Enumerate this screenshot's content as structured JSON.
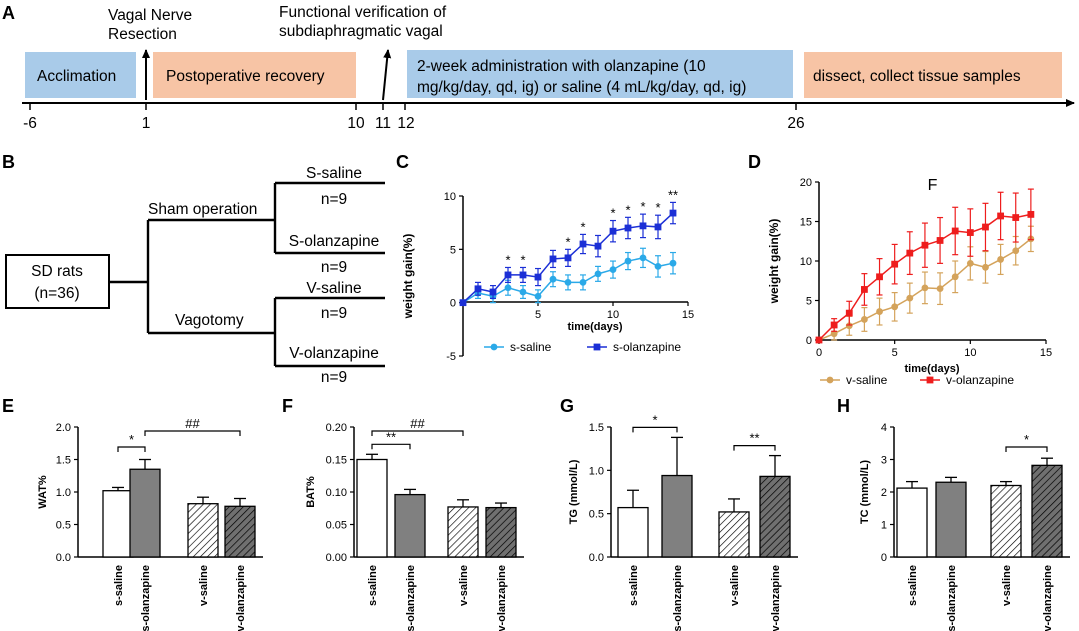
{
  "panel_letters": [
    "A",
    "B",
    "C",
    "D",
    "E",
    "F",
    "G",
    "H"
  ],
  "timeline": {
    "ticks": [
      "-6",
      "1",
      "10",
      "11",
      "12",
      "26"
    ],
    "events": {
      "vagal_resection": [
        "Vagal Nerve",
        "Resection"
      ],
      "functional_verification": [
        "Functional verification of",
        "subdiaphragmatic vagal"
      ]
    },
    "phases": {
      "acclimation": "Acclimation",
      "recovery": "Postoperative recovery",
      "administration": [
        "2-week administration with olanzapine (10",
        "mg/kg/day, qd, ig) or saline (4 mL/kg/day, qd, ig)"
      ],
      "dissect": "dissect, collect tissue samples"
    },
    "colors": {
      "blue_phase": "#a9cbe9",
      "orange_phase": "#f7c4a5"
    }
  },
  "design_tree": {
    "root": [
      "SD rats",
      "(n=36)"
    ],
    "sham": "Sham operation",
    "vagotomy": "Vagotomy",
    "groups": [
      {
        "name": "S-saline",
        "n": "n=9"
      },
      {
        "name": "S-olanzapine",
        "n": "n=9"
      },
      {
        "name": "V-saline",
        "n": "n=9"
      },
      {
        "name": "V-olanzapine",
        "n": "n=9"
      }
    ]
  },
  "chart_data": [
    {
      "id": "C",
      "type": "line",
      "title": "",
      "xlabel": "time(days)",
      "ylabel": "weight gain(%)",
      "xlim": [
        0,
        15
      ],
      "ylim": [
        -5,
        10
      ],
      "xticks": [
        5,
        10,
        15
      ],
      "yticks": [
        -5,
        0,
        5,
        10
      ],
      "x": [
        0,
        1,
        2,
        3,
        4,
        5,
        6,
        7,
        8,
        9,
        10,
        11,
        12,
        13,
        14
      ],
      "series": [
        {
          "name": "s-saline",
          "color": "#2aa9e8",
          "marker": "circle",
          "values": [
            0,
            0.9,
            0.6,
            1.4,
            1.0,
            0.6,
            2.2,
            1.9,
            1.9,
            2.7,
            3.1,
            3.9,
            4.2,
            3.4,
            3.7
          ],
          "errors": [
            0,
            0.5,
            0.6,
            0.7,
            0.6,
            0.6,
            0.7,
            0.7,
            0.7,
            0.7,
            0.8,
            0.8,
            0.9,
            1.0,
            1.0
          ]
        },
        {
          "name": "s-olanzapine",
          "color": "#1b2fd6",
          "marker": "square",
          "values": [
            0,
            1.3,
            1.0,
            2.6,
            2.6,
            2.4,
            4.1,
            4.2,
            5.5,
            5.3,
            6.7,
            7.0,
            7.2,
            7.1,
            8.4
          ],
          "errors": [
            0,
            0.6,
            0.6,
            0.7,
            0.7,
            0.8,
            0.8,
            0.8,
            0.9,
            1.0,
            1.0,
            1.0,
            1.1,
            1.1,
            1.0
          ]
        }
      ],
      "significance": [
        {
          "x": 3,
          "label": "*"
        },
        {
          "x": 4,
          "label": "*"
        },
        {
          "x": 7,
          "label": "*"
        },
        {
          "x": 8,
          "label": "*"
        },
        {
          "x": 10,
          "label": "*"
        },
        {
          "x": 11,
          "label": "*"
        },
        {
          "x": 12,
          "label": "*"
        },
        {
          "x": 13,
          "label": "*"
        },
        {
          "x": 14,
          "label": "**"
        }
      ],
      "legend_position": "bottom"
    },
    {
      "id": "D",
      "type": "line",
      "title": "F",
      "xlabel": "time(days)",
      "ylabel": "weight gain(%)",
      "xlim": [
        0,
        15
      ],
      "ylim": [
        0,
        20
      ],
      "xticks": [
        0,
        5,
        10,
        15
      ],
      "yticks": [
        0,
        5,
        10,
        15,
        20
      ],
      "x": [
        0,
        1,
        2,
        3,
        4,
        5,
        6,
        7,
        8,
        9,
        10,
        11,
        12,
        13,
        14
      ],
      "series": [
        {
          "name": "v-saline",
          "color": "#d4a35b",
          "marker": "circle",
          "values": [
            0,
            0.8,
            1.8,
            2.6,
            3.6,
            4.2,
            5.3,
            6.6,
            6.5,
            8.0,
            9.7,
            9.2,
            10.2,
            11.3,
            12.8
          ],
          "errors": [
            0,
            0.8,
            1.2,
            1.5,
            1.7,
            1.8,
            1.9,
            2.0,
            2.0,
            2.0,
            2.1,
            2.0,
            1.9,
            1.8,
            1.6
          ]
        },
        {
          "name": "v-olanzapine",
          "color": "#ee1d1d",
          "marker": "square",
          "values": [
            0,
            1.9,
            3.4,
            6.4,
            8.0,
            9.6,
            11.0,
            12.0,
            12.6,
            13.8,
            13.6,
            14.3,
            15.7,
            15.5,
            15.9
          ],
          "errors": [
            0,
            0.8,
            1.5,
            2.0,
            2.3,
            2.5,
            2.7,
            2.8,
            2.9,
            3.0,
            3.0,
            3.0,
            3.0,
            3.1,
            3.2
          ]
        }
      ],
      "legend_position": "bottom"
    },
    {
      "id": "E",
      "type": "bar",
      "ylabel": "WAT%",
      "ylim": [
        0,
        2.0
      ],
      "yticks": [
        "0.0",
        "0.5",
        "1.0",
        "1.5",
        "2.0"
      ],
      "categories": [
        "s-saline",
        "s-olanzapine",
        "v-saline",
        "v-olanzapine"
      ],
      "values": [
        1.02,
        1.35,
        0.82,
        0.78
      ],
      "errors": [
        0.05,
        0.15,
        0.1,
        0.12
      ],
      "comparisons": [
        {
          "a": 0,
          "b": 1,
          "label": "*"
        },
        {
          "a": 1,
          "b": 3,
          "label": "##"
        }
      ]
    },
    {
      "id": "F",
      "type": "bar",
      "ylabel": "BAT%",
      "ylim": [
        0,
        0.2
      ],
      "yticks": [
        "0.00",
        "0.05",
        "0.10",
        "0.15",
        "0.20"
      ],
      "categories": [
        "s-saline",
        "s-olanzapine",
        "v-saline",
        "v-olanzapine"
      ],
      "values": [
        0.15,
        0.096,
        0.077,
        0.076
      ],
      "errors": [
        0.008,
        0.008,
        0.011,
        0.007
      ],
      "comparisons": [
        {
          "a": 0,
          "b": 1,
          "label": "**"
        },
        {
          "a": 0,
          "b": 2,
          "label": "##"
        }
      ]
    },
    {
      "id": "G",
      "type": "bar",
      "ylabel": "TG (mmol/L)",
      "ylim": [
        0,
        1.5
      ],
      "yticks": [
        "0.0",
        "0.5",
        "1.0",
        "1.5"
      ],
      "categories": [
        "s-saline",
        "s-olanzapine",
        "v-saline",
        "v-olanzapine"
      ],
      "values": [
        0.57,
        0.94,
        0.52,
        0.93
      ],
      "errors": [
        0.2,
        0.44,
        0.15,
        0.24
      ],
      "comparisons": [
        {
          "a": 0,
          "b": 1,
          "label": "*"
        },
        {
          "a": 2,
          "b": 3,
          "label": "**"
        }
      ]
    },
    {
      "id": "H",
      "type": "bar",
      "ylabel": "TC (mmol/L)",
      "ylim": [
        0,
        4
      ],
      "yticks": [
        "0",
        "1",
        "2",
        "3",
        "4"
      ],
      "categories": [
        "s-saline",
        "s-olanzapine",
        "v-saline",
        "v-olanzapine"
      ],
      "values": [
        2.12,
        2.3,
        2.2,
        2.82
      ],
      "errors": [
        0.2,
        0.15,
        0.12,
        0.22
      ],
      "comparisons": [
        {
          "a": 2,
          "b": 3,
          "label": "*"
        }
      ]
    }
  ]
}
